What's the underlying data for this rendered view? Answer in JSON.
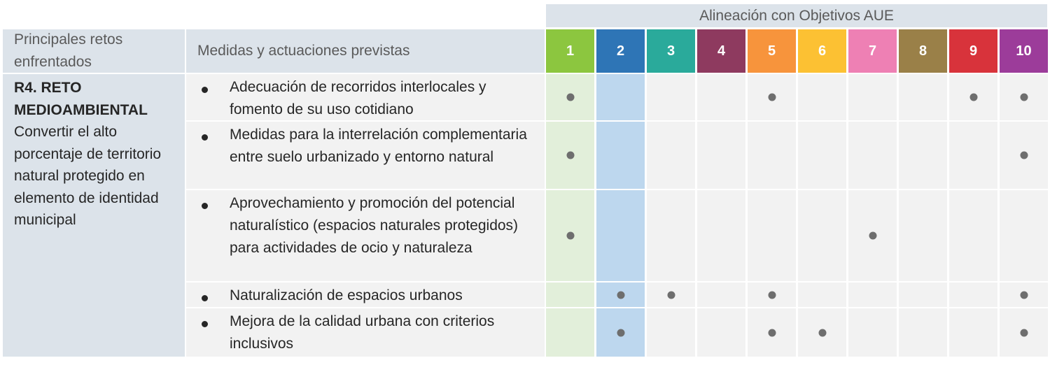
{
  "header": {
    "aue_title": "Alineación con Objetivos AUE",
    "col_retos": "Principales retos enfrentados",
    "col_medidas": "Medidas y actuaciones previstas",
    "objectives": [
      {
        "label": "1",
        "color": "#8cc63f"
      },
      {
        "label": "2",
        "color": "#2e75b6"
      },
      {
        "label": "3",
        "color": "#2aaa9b"
      },
      {
        "label": "4",
        "color": "#8e3a5f"
      },
      {
        "label": "5",
        "color": "#f7943c"
      },
      {
        "label": "6",
        "color": "#fcc133"
      },
      {
        "label": "7",
        "color": "#ee80b4"
      },
      {
        "label": "8",
        "color": "#9a8048"
      },
      {
        "label": "9",
        "color": "#d8333b"
      },
      {
        "label": "10",
        "color": "#9c3c9a"
      }
    ]
  },
  "reto": {
    "title": "R4. RETO MEDIOAMBIENTAL",
    "description": "Convertir el alto porcentaje de territorio natural protegido en elemento de identidad municipal"
  },
  "highlight_colors": {
    "col1": "#e2efda",
    "col2": "#bdd7ee",
    "default": "#f2f2f2"
  },
  "measures": [
    {
      "text": "Adecuación de recorridos interlocales y fomento de su uso cotidiano",
      "marks": [
        1,
        5,
        9,
        10
      ]
    },
    {
      "text": "Medidas para la interrelación complementaria entre suelo urbanizado y entorno natural",
      "marks": [
        1,
        10
      ]
    },
    {
      "text": "Aprovechamiento y promoción del potencial naturalístico (espacios naturales protegidos) para actividades de ocio y naturaleza",
      "marks": [
        1,
        7
      ]
    },
    {
      "text": "Naturalización de espacios urbanos",
      "marks": [
        2,
        3,
        5,
        10
      ]
    },
    {
      "text": "Mejora de la calidad urbana con criterios inclusivos",
      "marks": [
        2,
        5,
        6,
        10
      ]
    }
  ]
}
